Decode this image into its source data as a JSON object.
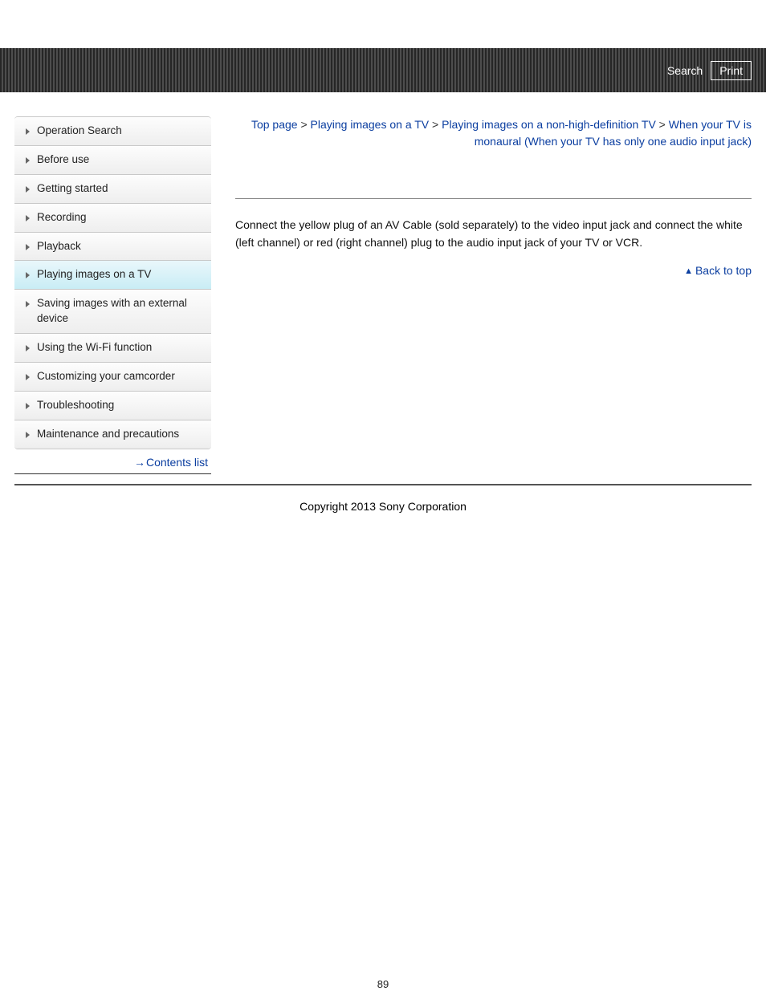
{
  "header": {
    "search_label": "Search",
    "print_label": "Print"
  },
  "sidebar": {
    "items": [
      {
        "label": "Operation Search",
        "active": false
      },
      {
        "label": "Before use",
        "active": false
      },
      {
        "label": "Getting started",
        "active": false
      },
      {
        "label": "Recording",
        "active": false
      },
      {
        "label": "Playback",
        "active": false
      },
      {
        "label": "Playing images on a TV",
        "active": true
      },
      {
        "label": "Saving images with an external device",
        "active": false
      },
      {
        "label": "Using the Wi-Fi function",
        "active": false
      },
      {
        "label": "Customizing your camcorder",
        "active": false
      },
      {
        "label": "Troubleshooting",
        "active": false
      },
      {
        "label": "Maintenance and precautions",
        "active": false
      }
    ],
    "contents_list_label": "Contents list"
  },
  "breadcrumb": {
    "parts": [
      "Top page",
      "Playing images on a TV",
      "Playing images on a non-high-definition TV",
      "When your TV is monaural (When your TV has only one audio input jack)"
    ],
    "separator": " > "
  },
  "main": {
    "body": "Connect the yellow plug of an AV Cable (sold separately) to the video input jack and connect the white (left channel) or red (right channel) plug to the audio input jack of your TV or VCR.",
    "back_to_top_label": "Back to top"
  },
  "footer": {
    "copyright": "Copyright 2013 Sony Corporation"
  },
  "page_number": "89",
  "colors": {
    "link": "#0b3ea0",
    "header_stripe_dark": "#262626",
    "header_stripe_light": "#4d4d4d",
    "sidebar_active_top": "#e9f7fb",
    "sidebar_active_bottom": "#c9edf5"
  }
}
